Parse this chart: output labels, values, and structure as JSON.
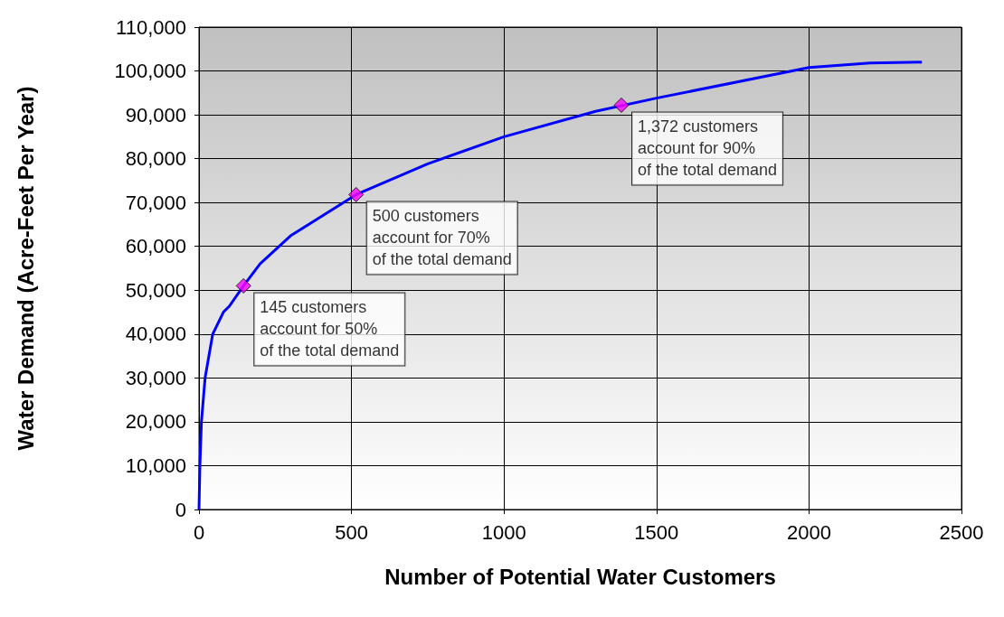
{
  "chart_data": {
    "type": "line",
    "xlabel": "Number of Potential Water Customers",
    "ylabel": "Water Demand (Acre-Feet Per Year)",
    "xlim": [
      0,
      2500
    ],
    "xticks": [
      0,
      500,
      1000,
      1500,
      2000,
      2500
    ],
    "ylim": [
      0,
      110000
    ],
    "yticks": [
      0,
      {
        "value": 10000,
        "label": "10,000"
      },
      {
        "value": 20000,
        "label": "20,000"
      },
      {
        "value": 30000,
        "label": "30,000"
      },
      {
        "value": 40000,
        "label": "40,000"
      },
      {
        "value": 50000,
        "label": "50,000"
      },
      {
        "value": 60000,
        "label": "60,000"
      },
      {
        "value": 70000,
        "label": "70,000"
      },
      {
        "value": 80000,
        "label": "80,000"
      },
      {
        "value": 90000,
        "label": "90,000"
      },
      {
        "value": 100000,
        "label": "100,000"
      },
      {
        "value": 110000,
        "label": "110,000"
      }
    ],
    "grid": true,
    "series": [
      {
        "color": "#0000ff",
        "marker": "none",
        "line_style": "solid",
        "x": [
          0,
          3,
          8,
          20,
          45,
          80,
          100,
          146,
          200,
          300,
          515,
          750,
          1000,
          1300,
          1500,
          2000,
          2200,
          2370
        ],
        "values": [
          0,
          10000,
          20000,
          30000,
          40000,
          45000,
          46400,
          51000,
          56000,
          62400,
          71800,
          78800,
          85000,
          90800,
          93800,
          100800,
          101800,
          102000
        ]
      },
      {
        "type": "scatter",
        "color": "#ff00ff",
        "marker": "diamond",
        "x": [
          146,
          515,
          1385
        ],
        "values": [
          51000,
          71800,
          92200
        ]
      }
    ],
    "annotations": [
      {
        "text": "145 customers\naccount for 50%\nof the total demand",
        "x": 146,
        "y": 51000
      },
      {
        "text": "500 customers\naccount for 70%\nof the total demand",
        "x": 515,
        "y": 71800
      },
      {
        "text": "1,372 customers\naccount for 90%\nof the total demand",
        "x": 1385,
        "y": 92200
      }
    ]
  }
}
